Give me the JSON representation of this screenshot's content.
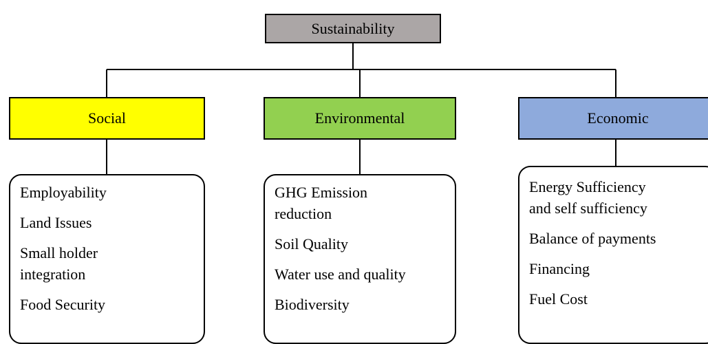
{
  "root": {
    "label": "Sustainability"
  },
  "pillars": [
    {
      "label": "Social",
      "items": [
        [
          "Employability"
        ],
        [
          "Land Issues"
        ],
        [
          "Small holder",
          "integration"
        ],
        [
          "Food Security"
        ]
      ]
    },
    {
      "label": "Environmental",
      "items": [
        [
          "GHG Emission",
          "reduction"
        ],
        [
          "Soil Quality"
        ],
        [
          "Water use and quality"
        ],
        [
          "Biodiversity"
        ]
      ]
    },
    {
      "label": "Economic",
      "items": [
        [
          "Energy Sufficiency",
          "and self sufficiency"
        ],
        [
          "Balance of payments"
        ],
        [
          "Financing"
        ],
        [
          "Fuel Cost"
        ]
      ]
    }
  ]
}
